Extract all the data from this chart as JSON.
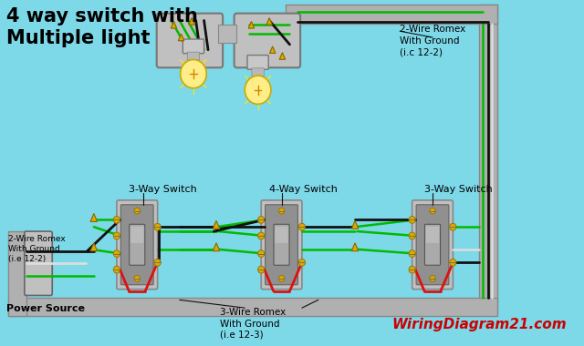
{
  "bg_color": "#7dd8e8",
  "title_line1": "4 way switch with",
  "title_line2": "Multiple light",
  "title_color": "#000000",
  "title_fontsize": 15,
  "watermark": "WiringDiagram21.com",
  "watermark_color": "#cc0000",
  "label_2wire_right": "2-Wire Romex\nWith Ground\n(i.c 12-2)",
  "label_2wire_left": "2-Wire Romex\nWith Ground\n(i.e 12-2)",
  "label_3wire": "3-Wire Romex\nWith Ground\n(i.e 12-3)",
  "label_3way_left": "3-Way Switch",
  "label_4way": "4-Way Switch",
  "label_3way_right": "3-Way Switch",
  "label_power": "Power Source",
  "gray_conduit": "#b0b0b0",
  "gray_box": "#aaaaaa",
  "gray_switch": "#909090",
  "gray_switch_face": "#c0c0c0",
  "wire_black": "#111111",
  "wire_green": "#00bb00",
  "wire_red": "#dd1111",
  "wire_white": "#dddddd",
  "wire_bare": "#bbaa55",
  "screw_yellow": "#ddaa00",
  "bulb_yellow": "#ffee88",
  "nut_orange": "#ddaa00"
}
